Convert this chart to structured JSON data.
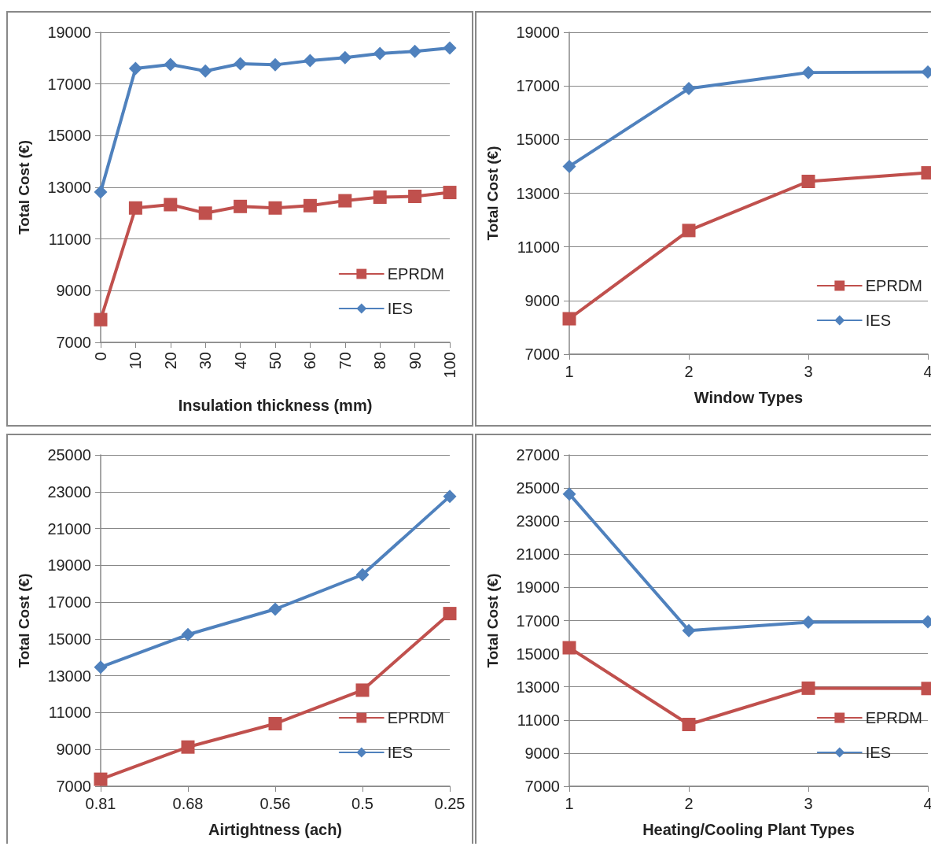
{
  "chart_data": [
    {
      "type": "line",
      "xlabel": "Insulation thickness (mm)",
      "ylabel": "Total Cost (€)",
      "categories": [
        "0",
        "10",
        "20",
        "30",
        "40",
        "50",
        "60",
        "70",
        "80",
        "90",
        "100"
      ],
      "ylim": [
        7000,
        19000
      ],
      "yticks": [
        7000,
        9000,
        11000,
        13000,
        15000,
        17000,
        19000
      ],
      "grid": "y",
      "legend": "bottom right",
      "series": [
        {
          "name": "EPRDM",
          "color": "#c0504d",
          "marker": "square",
          "values": [
            7880,
            12200,
            12330,
            12000,
            12260,
            12200,
            12290,
            12480,
            12620,
            12650,
            12800
          ]
        },
        {
          "name": "IES",
          "color": "#4f81bd",
          "marker": "diamond",
          "values": [
            12820,
            17600,
            17750,
            17500,
            17780,
            17740,
            17900,
            18020,
            18180,
            18260,
            18390
          ]
        }
      ]
    },
    {
      "type": "line",
      "xlabel": "Window Types",
      "ylabel": "Total Cost (€)",
      "categories": [
        "1",
        "2",
        "3",
        "4"
      ],
      "ylim": [
        7000,
        19000
      ],
      "yticks": [
        7000,
        9000,
        11000,
        13000,
        15000,
        17000,
        19000
      ],
      "grid": "y",
      "legend": "bottom right",
      "series": [
        {
          "name": "EPRDM",
          "color": "#c0504d",
          "marker": "square",
          "values": [
            8320,
            11610,
            13440,
            13760
          ]
        },
        {
          "name": "IES",
          "color": "#4f81bd",
          "marker": "diamond",
          "values": [
            14000,
            16900,
            17500,
            17520
          ]
        }
      ]
    },
    {
      "type": "line",
      "xlabel": "Airtightness (ach)",
      "ylabel": "Total Cost (€)",
      "categories": [
        "0.81",
        "0.68",
        "0.56",
        "0.5",
        "0.25"
      ],
      "ylim": [
        7000,
        25000
      ],
      "yticks": [
        7000,
        9000,
        11000,
        13000,
        15000,
        17000,
        19000,
        21000,
        23000,
        25000
      ],
      "grid": "y",
      "legend": "bottom right",
      "series": [
        {
          "name": "EPRDM",
          "color": "#c0504d",
          "marker": "square",
          "values": [
            7380,
            9130,
            10400,
            12220,
            16380
          ]
        },
        {
          "name": "IES",
          "color": "#4f81bd",
          "marker": "diamond",
          "values": [
            13470,
            15240,
            16620,
            18490,
            22750
          ]
        }
      ]
    },
    {
      "type": "line",
      "xlabel": "Heating/Cooling Plant Types",
      "ylabel": "Total Cost (€)",
      "categories": [
        "1",
        "2",
        "3",
        "4"
      ],
      "ylim": [
        7000,
        27000
      ],
      "yticks": [
        7000,
        9000,
        11000,
        13000,
        15000,
        17000,
        19000,
        21000,
        23000,
        25000,
        27000
      ],
      "grid": "y",
      "legend": "bottom right",
      "series": [
        {
          "name": "EPRDM",
          "color": "#c0504d",
          "marker": "square",
          "values": [
            15360,
            10730,
            12920,
            12900
          ]
        },
        {
          "name": "IES",
          "color": "#4f81bd",
          "marker": "diamond",
          "values": [
            24640,
            16400,
            16900,
            16930
          ]
        }
      ]
    }
  ]
}
